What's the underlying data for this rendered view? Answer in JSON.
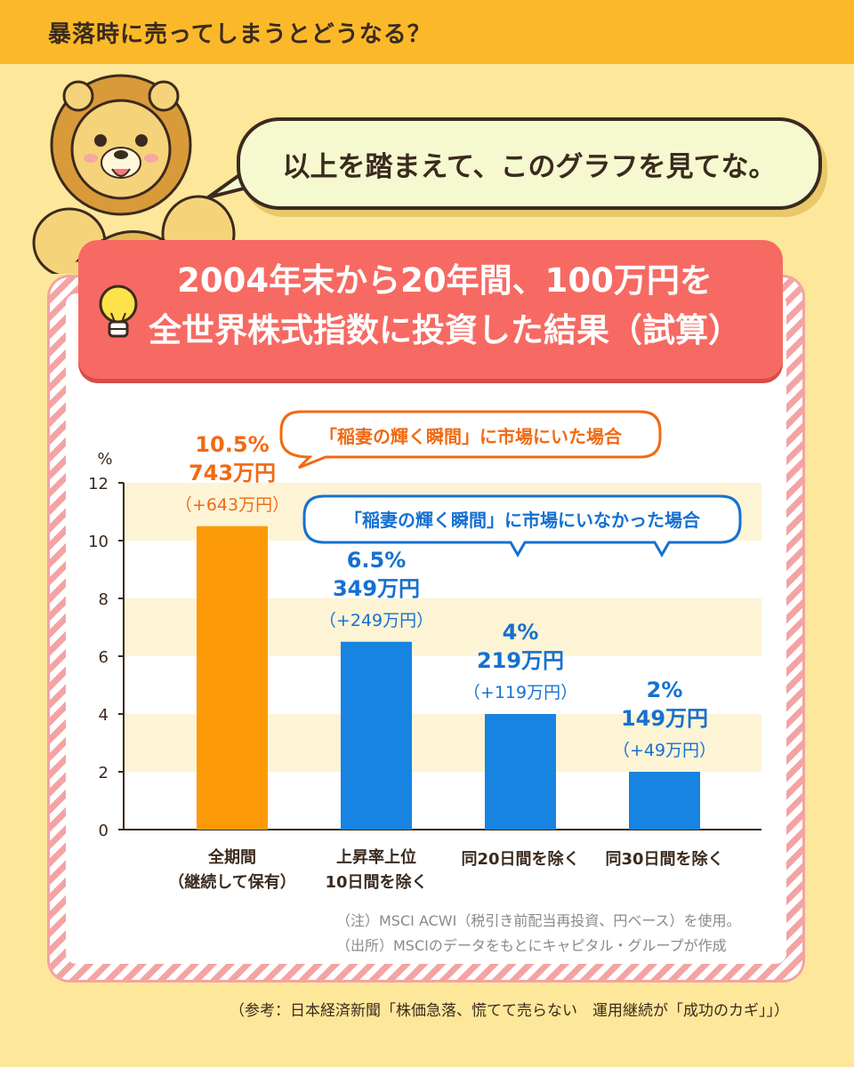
{
  "page": {
    "title": "暴落時に売ってしまうとどうなる？",
    "speech": "以上を踏まえて、このグラフを見てな。",
    "header_line1": "2004年末から20年間、100万円を",
    "header_line2": "全世界株式指数に投資した結果（試算）",
    "note1": "（注）MSCI ACWI（税引き前配当再投資、円ベース）を使用。",
    "note2": "（出所）MSCIのデータをもとにキャピタル・グループが作成",
    "reference": "（参考：日本経済新聞「株価急落、慌てて売らない　運用継続が「成功のカギ」」）"
  },
  "colors": {
    "orange": "#fb9a06",
    "blue": "#1684e0",
    "orange_text": "#f16a12",
    "blue_text": "#1670d0",
    "band": "#fdf4d6"
  },
  "chart_data": {
    "type": "bar",
    "ylabel": "%",
    "ylim": [
      0,
      12
    ],
    "yticks": [
      "0",
      "2",
      "4",
      "6",
      "8",
      "10",
      "12"
    ],
    "grid": "alternating horizontal bands",
    "categories": [
      [
        "全期間",
        "（継続して保有）"
      ],
      [
        "上昇率上位",
        "10日間を除く"
      ],
      [
        "同20日間を除く"
      ],
      [
        "同30日間を除く"
      ]
    ],
    "values": [
      10.5,
      6.5,
      4,
      2
    ],
    "labels": [
      {
        "pct": "10.5%",
        "amount": "743万円",
        "gain": "（+643万円）",
        "color": "orange"
      },
      {
        "pct": "6.5%",
        "amount": "349万円",
        "gain": "（+249万円）",
        "color": "blue"
      },
      {
        "pct": "4%",
        "amount": "219万円",
        "gain": "（+119万円）",
        "color": "blue"
      },
      {
        "pct": "2%",
        "amount": "149万円",
        "gain": "（+49万円）",
        "color": "blue"
      }
    ],
    "annotations": {
      "in_market": "「稲妻の輝く瞬間」に市場にいた場合",
      "out_market": "「稲妻の輝く瞬間」に市場にいなかった場合"
    }
  }
}
